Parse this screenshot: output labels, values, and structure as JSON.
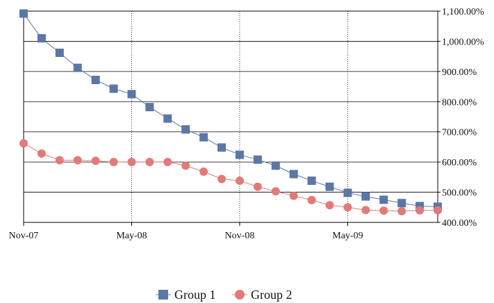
{
  "chart_data": {
    "type": "line",
    "x": [
      "2007-11",
      "2007-12",
      "2008-01",
      "2008-02",
      "2008-03",
      "2008-04",
      "2008-05",
      "2008-06",
      "2008-07",
      "2008-08",
      "2008-09",
      "2008-10",
      "2008-11",
      "2008-12",
      "2009-01",
      "2009-02",
      "2009-03",
      "2009-04",
      "2009-05",
      "2009-06",
      "2009-07",
      "2009-08",
      "2009-09",
      "2009-10"
    ],
    "x_tick_labels": [
      "Nov-07",
      "May-08",
      "Nov-08",
      "May-09"
    ],
    "x_tick_positions": [
      "2007-11",
      "2008-05",
      "2008-11",
      "2009-05"
    ],
    "y_tick_labels": [
      "400.00%",
      "500.00%",
      "600.00%",
      "700.00%",
      "800.00%",
      "900.00%",
      "1,000.00%",
      "1,100.00%"
    ],
    "series": [
      {
        "name": "Group 1",
        "color": "#5b77a5",
        "marker": "square",
        "values": [
          1092,
          1010,
          962,
          912,
          872,
          843,
          825,
          782,
          744,
          708,
          682,
          648,
          624,
          608,
          588,
          560,
          538,
          518,
          498,
          486,
          475,
          464,
          454,
          452
        ]
      },
      {
        "name": "Group 2",
        "color": "#e07b79",
        "marker": "circle",
        "values": [
          662,
          628,
          606,
          606,
          604,
          600,
          600,
          600,
          600,
          588,
          568,
          544,
          538,
          518,
          503,
          488,
          474,
          457,
          450,
          441,
          439,
          437,
          440,
          440
        ]
      }
    ],
    "ylim": [
      400,
      1100
    ],
    "y_axis_side": "right",
    "grid": true,
    "legend": "bottom-center",
    "title": "",
    "xlabel": "",
    "ylabel": ""
  }
}
